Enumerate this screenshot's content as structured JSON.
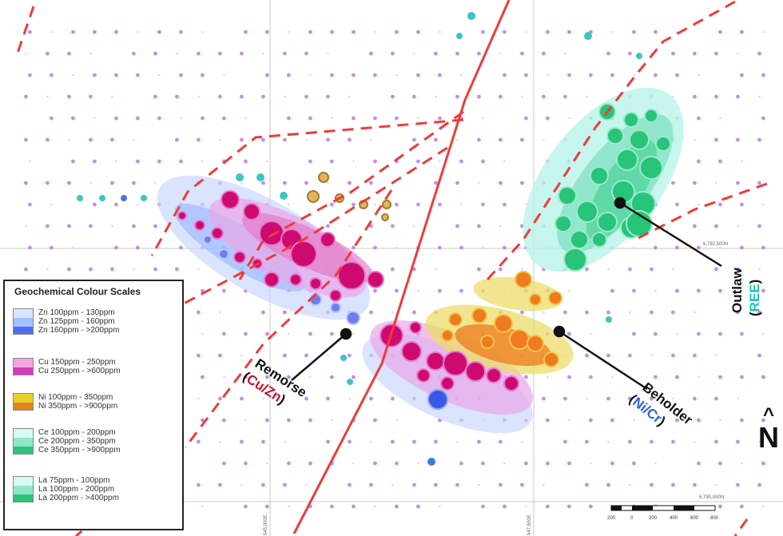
{
  "legend": {
    "title": "Geochemical Colour Scales",
    "groups": [
      {
        "element": "Zn",
        "colors": [
          "#d7e6ff",
          "#a3c0ff",
          "#4d6ef0"
        ],
        "rows": [
          "Zn 100ppm - 130ppm",
          "Zn 125ppm - 160ppm",
          "Zn 160ppm - >200ppm"
        ]
      },
      {
        "element": "Cu",
        "colors": [
          "#f3a6e6",
          "#d53ab7"
        ],
        "rows": [
          "Cu 150ppm - 250ppm",
          "Cu 250ppm - >600ppm"
        ]
      },
      {
        "element": "Ni",
        "colors": [
          "#e6d02e",
          "#e8821a"
        ],
        "rows": [
          "Ni 100ppm - 350ppm",
          "Ni 350ppm - >900ppm"
        ]
      },
      {
        "element": "Ce",
        "colors": [
          "#d6fbf3",
          "#8fe7c8",
          "#2fc27c"
        ],
        "rows": [
          "Ce 100ppm - 200ppm",
          "Ce 200ppm - 350ppm",
          "Ce 350ppm - >900ppm"
        ]
      },
      {
        "element": "La",
        "colors": [
          "#d6fbf3",
          "#8fe7c8",
          "#2fc27c"
        ],
        "rows": [
          "La 75ppm - 100ppm",
          "La 100ppm - 200ppm",
          "La 200ppm - >400ppm"
        ]
      }
    ]
  },
  "targets": [
    {
      "name": "Remorse",
      "commodity": "Cu/Zn",
      "commodity_color": "#c8102e"
    },
    {
      "name": "Beholder",
      "commodity": "Ni/Cr",
      "commodity_color": "#2f5fe0"
    },
    {
      "name": "Outlaw",
      "commodity": "REE",
      "commodity_color": "#19c3b6"
    }
  ],
  "grid_labels": {
    "northing_upper": "6,792,500N",
    "northing_lower": "6,790,000N",
    "easting_left": "545,000E",
    "easting_right": "547,500E"
  },
  "scale_bar": {
    "ticks": [
      "200",
      "0",
      "200",
      "400",
      "600",
      "800"
    ]
  },
  "north_arrow": {
    "label": "N"
  },
  "colors": {
    "fault": "#ef3b3b",
    "grid": "#c9c9c9",
    "background_dot": "#c68ee6",
    "zn_zone": "#c6d6ff",
    "cu_zone": "#e9a6e8",
    "cu_high": "#cf0a6e",
    "ni_zone": "#ecdc6a",
    "ni_high": "#ee7b1d",
    "ree_zone": "#b9f4ea",
    "ree_mid": "#7fe0c2",
    "ree_high": "#27c47a"
  }
}
